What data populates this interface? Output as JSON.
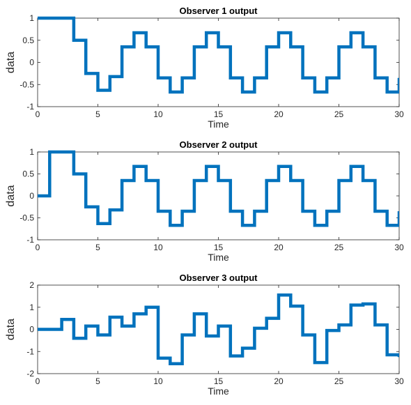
{
  "chart_data": [
    {
      "type": "line",
      "step": true,
      "title": "Observer 1 output",
      "xlabel": "Time",
      "ylabel": "data",
      "xlim": [
        0,
        30
      ],
      "ylim": [
        -1,
        1
      ],
      "xticks": [
        0,
        5,
        10,
        15,
        20,
        25,
        30
      ],
      "yticks": [
        -1,
        -0.5,
        0,
        0.5,
        1
      ],
      "line_color": "#0072BD",
      "series": [
        {
          "x": [
            0,
            1,
            2,
            3,
            4,
            5,
            6,
            7,
            8,
            9,
            10,
            11,
            12,
            13,
            14,
            15,
            16,
            17,
            18,
            19,
            20,
            21,
            22,
            23,
            24,
            25,
            26,
            27,
            28,
            29,
            30
          ],
          "y": [
            1,
            1,
            1,
            0.5,
            -0.25,
            -0.63,
            -0.32,
            0.35,
            0.67,
            0.35,
            -0.35,
            -0.67,
            -0.35,
            0.35,
            0.67,
            0.35,
            -0.35,
            -0.67,
            -0.35,
            0.35,
            0.67,
            0.35,
            -0.35,
            -0.67,
            -0.35,
            0.35,
            0.67,
            0.35,
            -0.35,
            -0.67,
            -0.35
          ]
        }
      ]
    },
    {
      "type": "line",
      "step": true,
      "title": "Observer 2 output",
      "xlabel": "Time",
      "ylabel": "data",
      "xlim": [
        0,
        30
      ],
      "ylim": [
        -1,
        1
      ],
      "xticks": [
        0,
        5,
        10,
        15,
        20,
        25,
        30
      ],
      "yticks": [
        -1,
        -0.5,
        0,
        0.5,
        1
      ],
      "line_color": "#0072BD",
      "series": [
        {
          "x": [
            0,
            1,
            2,
            3,
            4,
            5,
            6,
            7,
            8,
            9,
            10,
            11,
            12,
            13,
            14,
            15,
            16,
            17,
            18,
            19,
            20,
            21,
            22,
            23,
            24,
            25,
            26,
            27,
            28,
            29,
            30
          ],
          "y": [
            0,
            1,
            1,
            0.5,
            -0.25,
            -0.63,
            -0.32,
            0.35,
            0.67,
            0.35,
            -0.35,
            -0.67,
            -0.35,
            0.35,
            0.67,
            0.35,
            -0.35,
            -0.67,
            -0.35,
            0.35,
            0.67,
            0.35,
            -0.35,
            -0.67,
            -0.35,
            0.35,
            0.67,
            0.35,
            -0.35,
            -0.67,
            -0.35
          ]
        }
      ]
    },
    {
      "type": "line",
      "step": true,
      "title": "Observer 3 output",
      "xlabel": "Time",
      "ylabel": "data",
      "xlim": [
        0,
        30
      ],
      "ylim": [
        -2,
        2
      ],
      "xticks": [
        0,
        5,
        10,
        15,
        20,
        25,
        30
      ],
      "yticks": [
        -2,
        -1,
        0,
        1,
        2
      ],
      "line_color": "#0072BD",
      "series": [
        {
          "x": [
            0,
            1,
            2,
            3,
            4,
            5,
            6,
            7,
            8,
            9,
            10,
            11,
            12,
            13,
            14,
            15,
            16,
            17,
            18,
            19,
            20,
            21,
            22,
            23,
            24,
            25,
            26,
            27,
            28,
            29,
            30
          ],
          "y": [
            0,
            0,
            0.45,
            -0.4,
            0.15,
            -0.25,
            0.55,
            0.15,
            0.7,
            1.0,
            -1.3,
            -1.55,
            -0.25,
            0.7,
            -0.3,
            0.15,
            -1.2,
            -0.85,
            0.05,
            0.5,
            1.55,
            1.05,
            -0.25,
            -1.5,
            -0.05,
            0.2,
            1.1,
            1.15,
            0.2,
            -1.15,
            -1.25
          ]
        }
      ]
    }
  ]
}
